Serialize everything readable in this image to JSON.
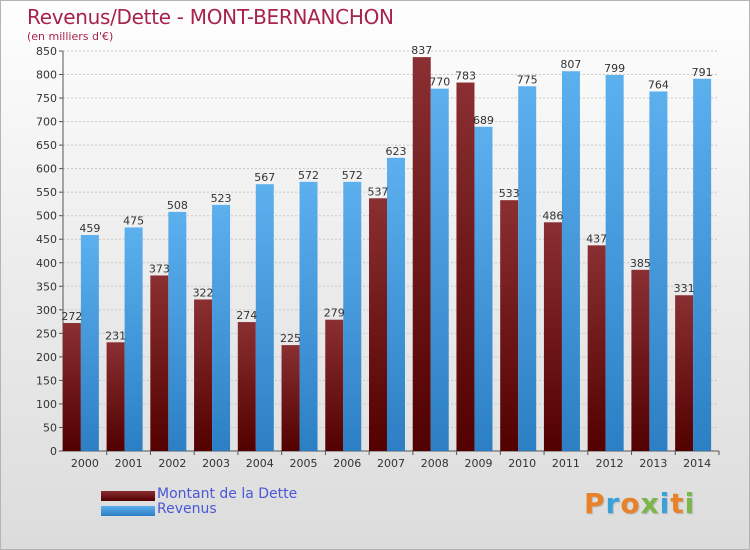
{
  "header": {
    "title": "Revenus/Dette - MONT-BERNANCHON",
    "subtitle": "(en milliers d'€)"
  },
  "legend": {
    "items": [
      {
        "label": "Montant de la Dette",
        "color": "#6f1a1c"
      },
      {
        "label": "Revenus",
        "color": "#4b9fe0"
      }
    ]
  },
  "logo": {
    "text": "Proxiti"
  },
  "colors": {
    "title": "#a8234b",
    "dette_top": "#8a2f32",
    "dette_bottom": "#520000",
    "revenus_top": "#5cb0ee",
    "revenus_bottom": "#2c7fc4",
    "logo_letters": [
      "#e8822a",
      "#3aa0d8",
      "#e8822a",
      "#7ab648",
      "#3aa0d8",
      "#e8822a",
      "#7ab648"
    ]
  },
  "chart_data": {
    "type": "bar",
    "title": "Revenus/Dette - MONT-BERNANCHON",
    "subtitle": "(en milliers d'€)",
    "categories": [
      "2000",
      "2001",
      "2002",
      "2003",
      "2004",
      "2005",
      "2006",
      "2007",
      "2008",
      "2009",
      "2010",
      "2011",
      "2012",
      "2013",
      "2014"
    ],
    "series": [
      {
        "name": "Montant de la Dette",
        "values": [
          272,
          231,
          373,
          322,
          274,
          225,
          279,
          537,
          837,
          783,
          533,
          486,
          437,
          385,
          331
        ]
      },
      {
        "name": "Revenus",
        "values": [
          459,
          475,
          508,
          523,
          567,
          572,
          572,
          623,
          770,
          689,
          775,
          807,
          799,
          764,
          791
        ]
      }
    ],
    "ylim": [
      0,
      850
    ],
    "yticks": [
      0,
      50,
      100,
      150,
      200,
      250,
      300,
      350,
      400,
      450,
      500,
      550,
      600,
      650,
      700,
      750,
      800,
      850
    ],
    "grid": true,
    "legend_position": "bottom-left"
  }
}
